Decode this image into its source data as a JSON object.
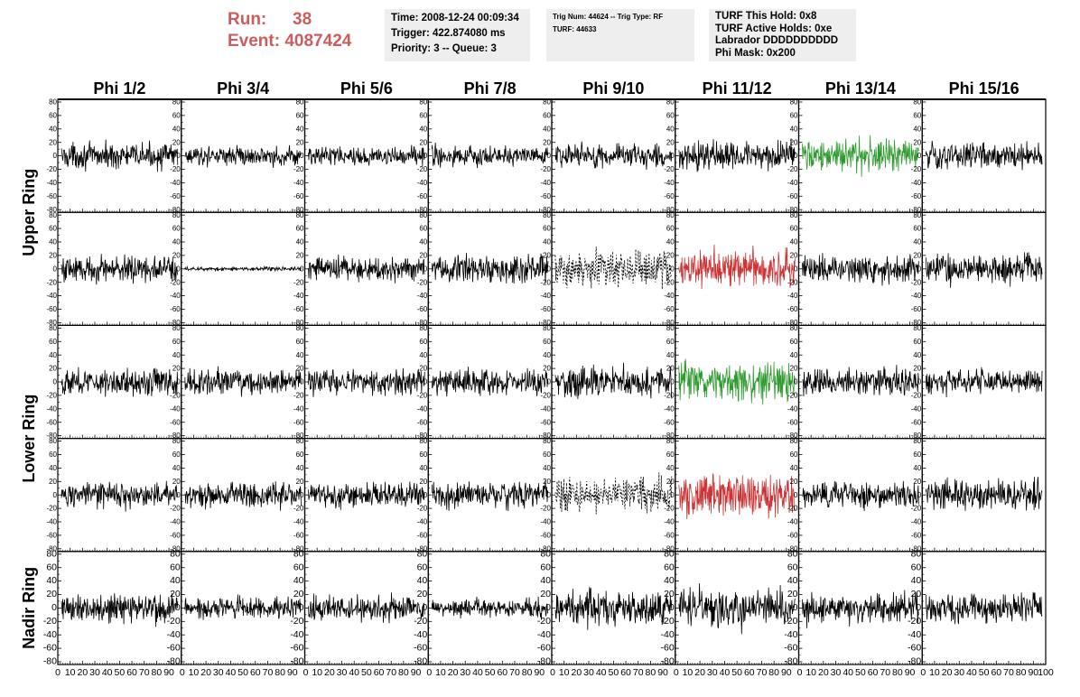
{
  "header": {
    "run_label": "Run:",
    "run_value": "38",
    "event_label": "Event:",
    "event_value": "4087424",
    "time_box": [
      "Time: 2008-12-24 00:09:34",
      "Trigger: 422.874080 ms",
      "Priority: 3 -- Queue: 3"
    ],
    "trig_box": [
      "Trig Num: 44624 -- Trig Type: RF",
      "",
      "TURF: 44633"
    ],
    "turf_box": [
      "TURF This Hold: 0x8",
      "TURF Active Holds: 0xe",
      "Labrador DDDDDDDDDD",
      "Phi Mask: 0x200"
    ]
  },
  "chart_data": {
    "type": "line",
    "columns": [
      "Phi 1/2",
      "Phi 3/4",
      "Phi 5/6",
      "Phi 7/8",
      "Phi 9/10",
      "Phi 11/12",
      "Phi 13/14",
      "Phi 15/16"
    ],
    "row_groups": [
      {
        "label": "Upper Ring",
        "rows": [
          0,
          1
        ]
      },
      {
        "label": "Lower Ring",
        "rows": [
          2,
          3
        ]
      },
      {
        "label": "Nadir Ring",
        "rows": [
          4
        ]
      }
    ],
    "ylim": [
      -80,
      80
    ],
    "y_ticks": [
      80,
      60,
      40,
      20,
      0,
      -20,
      -40,
      -60,
      -80
    ],
    "xlim": [
      0,
      100
    ],
    "x_ticks": [
      0,
      10,
      20,
      30,
      40,
      50,
      60,
      70,
      80,
      90,
      100
    ],
    "samples_per_trace": 260,
    "colors": {
      "default": "#000000",
      "green": "#2e9a2e",
      "red": "#cc3333",
      "title": "#cd5c5c",
      "box": "#eeeeee"
    },
    "panels": [
      [
        {
          "amp": 12,
          "style": "solid",
          "color": "default"
        },
        {
          "amp": 9,
          "style": "solid",
          "color": "default"
        },
        {
          "amp": 9,
          "style": "solid",
          "color": "default"
        },
        {
          "amp": 10,
          "style": "solid",
          "color": "default"
        },
        {
          "amp": 12,
          "style": "solid",
          "color": "default"
        },
        {
          "amp": 14,
          "style": "solid",
          "color": "default"
        },
        {
          "amp": 16,
          "style": "solid",
          "color": "green"
        },
        {
          "amp": 13,
          "style": "solid",
          "color": "default"
        }
      ],
      [
        {
          "amp": 13,
          "style": "solid",
          "color": "default"
        },
        {
          "amp": 2,
          "style": "solid",
          "color": "default"
        },
        {
          "amp": 12,
          "style": "solid",
          "color": "default"
        },
        {
          "amp": 14,
          "style": "solid",
          "color": "default"
        },
        {
          "amp": 18,
          "style": "dashed",
          "color": "default"
        },
        {
          "amp": 18,
          "style": "solid",
          "color": "red"
        },
        {
          "amp": 13,
          "style": "solid",
          "color": "default"
        },
        {
          "amp": 14,
          "style": "solid",
          "color": "default"
        }
      ],
      [
        {
          "amp": 13,
          "style": "solid",
          "color": "default"
        },
        {
          "amp": 12,
          "style": "solid",
          "color": "default"
        },
        {
          "amp": 12,
          "style": "solid",
          "color": "default"
        },
        {
          "amp": 12,
          "style": "solid",
          "color": "default"
        },
        {
          "amp": 15,
          "style": "solid",
          "color": "default"
        },
        {
          "amp": 20,
          "style": "solid",
          "color": "green"
        },
        {
          "amp": 13,
          "style": "solid",
          "color": "default"
        },
        {
          "amp": 12,
          "style": "solid",
          "color": "default"
        }
      ],
      [
        {
          "amp": 12,
          "style": "solid",
          "color": "default"
        },
        {
          "amp": 13,
          "style": "solid",
          "color": "default"
        },
        {
          "amp": 12,
          "style": "solid",
          "color": "default"
        },
        {
          "amp": 13,
          "style": "solid",
          "color": "default"
        },
        {
          "amp": 16,
          "style": "dashed",
          "color": "default"
        },
        {
          "amp": 20,
          "style": "solid",
          "color": "red"
        },
        {
          "amp": 12,
          "style": "solid",
          "color": "default"
        },
        {
          "amp": 14,
          "style": "solid",
          "color": "default"
        }
      ],
      [
        {
          "amp": 15,
          "style": "solid",
          "color": "default"
        },
        {
          "amp": 10,
          "style": "solid",
          "color": "default"
        },
        {
          "amp": 12,
          "style": "solid",
          "color": "default"
        },
        {
          "amp": 9,
          "style": "solid",
          "color": "default"
        },
        {
          "amp": 17,
          "style": "solid",
          "color": "default"
        },
        {
          "amp": 19,
          "style": "solid",
          "color": "default"
        },
        {
          "amp": 15,
          "style": "solid",
          "color": "default"
        },
        {
          "amp": 14,
          "style": "solid",
          "color": "default"
        }
      ]
    ]
  }
}
